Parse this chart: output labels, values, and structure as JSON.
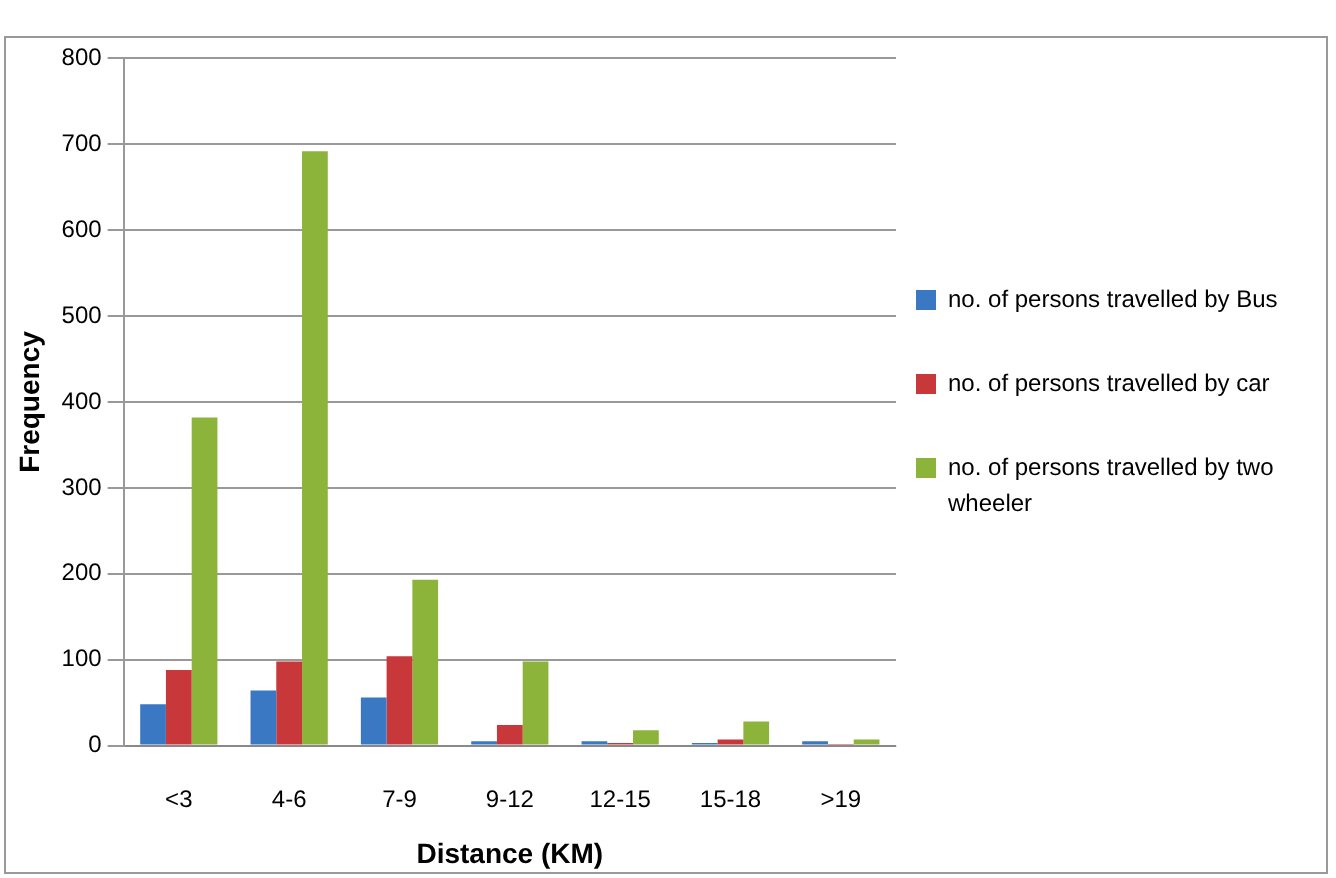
{
  "chart_data": {
    "type": "bar",
    "xlabel": "Distance (KM)",
    "ylabel": "Frequency",
    "categories": [
      "<3",
      "4-6",
      "7-9",
      "9-12",
      "12-15",
      "15-18",
      ">19"
    ],
    "series": [
      {
        "name": "no. of persons travelled by Bus",
        "color": "#3a78c4",
        "values": [
          48,
          64,
          56,
          5,
          5,
          3,
          5
        ]
      },
      {
        "name": "no. of persons travelled by car",
        "color": "#c8373a",
        "values": [
          88,
          98,
          104,
          24,
          3,
          7,
          2
        ]
      },
      {
        "name": "no. of persons travelled by two wheeler",
        "color": "#8db43a",
        "values": [
          382,
          692,
          193,
          98,
          18,
          28,
          7
        ]
      }
    ],
    "ylim": [
      0,
      800
    ],
    "yticks": [
      0,
      100,
      200,
      300,
      400,
      500,
      600,
      700,
      800
    ],
    "grid": "y",
    "legend": "right"
  }
}
